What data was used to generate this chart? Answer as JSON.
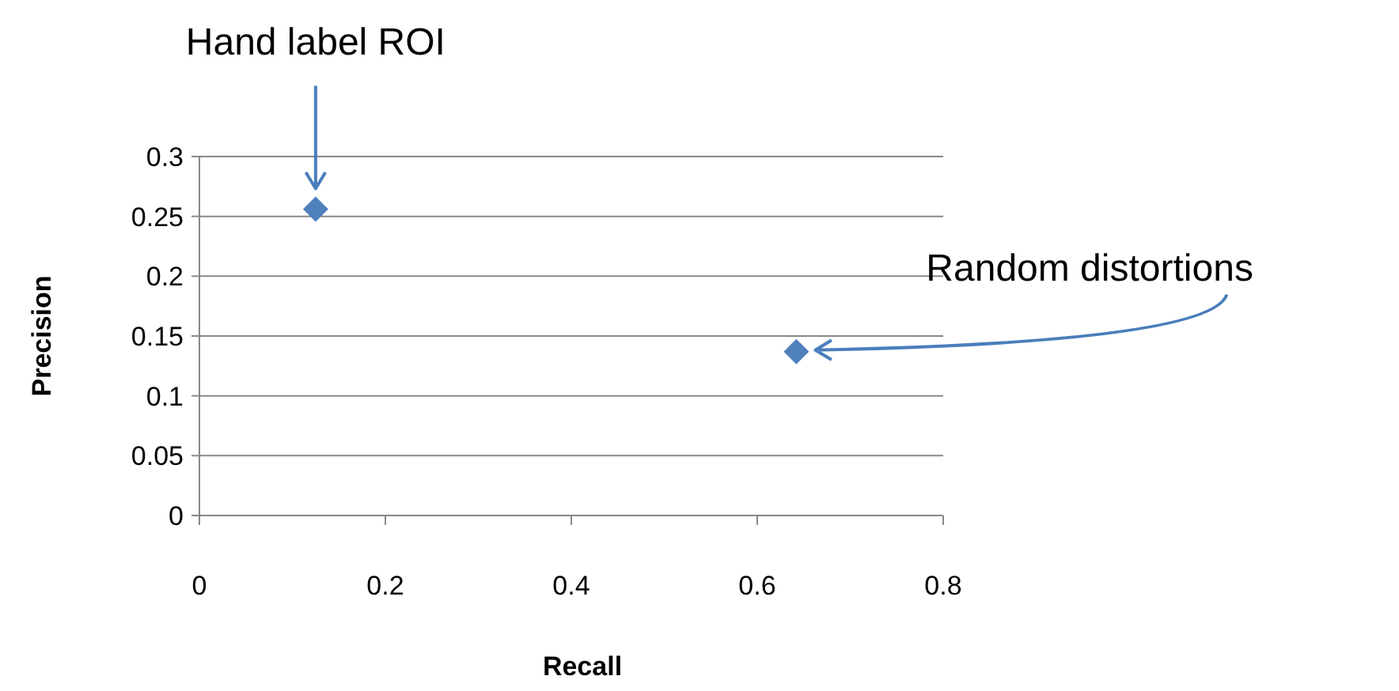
{
  "chart_data": {
    "type": "scatter",
    "xlabel": "Recall",
    "ylabel": "Precision",
    "x": [
      0.125,
      0.642
    ],
    "series": [
      {
        "color": "#4f81bd",
        "values": [
          0.256,
          0.137
        ]
      }
    ],
    "xlim": [
      0,
      0.8
    ],
    "xticks": [
      0,
      0.2,
      0.4,
      0.6,
      0.8
    ],
    "ylim": [
      0,
      0.3
    ],
    "yticks": [
      0,
      0.05,
      0.1,
      0.15,
      0.2,
      0.25,
      0.3
    ],
    "grid": "y",
    "marker": "diamond",
    "annotations": [
      "Hand label ROI",
      "Random distortions"
    ]
  }
}
